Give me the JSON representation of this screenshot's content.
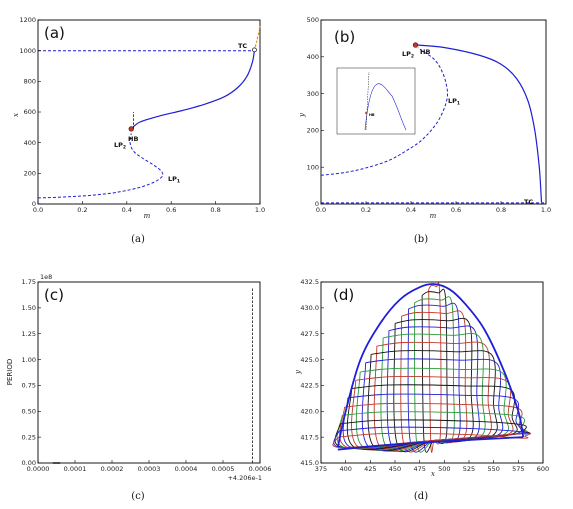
{
  "colors": {
    "blue": "#1f1fd6",
    "orange": "#e08a1e",
    "red": "#c0392b",
    "green": "#2a9a3a",
    "black": "#111111"
  },
  "chart_data": [
    {
      "panel_label": "(a)",
      "caption": "(a)",
      "type": "line",
      "xlabel": "m",
      "ylabel": "x",
      "xlim": [
        0.0,
        1.0
      ],
      "ylim": [
        0,
        1200
      ],
      "xticks": [
        "0.0",
        "0.2",
        "0.4",
        "0.6",
        "0.8",
        "1.0"
      ],
      "yticks": [
        "0",
        "200",
        "400",
        "600",
        "800",
        "1000",
        "1200"
      ],
      "annotations": [
        "TC",
        "HB",
        "LP2",
        "LP1"
      ],
      "series": [
        {
          "style": "dashed-blue",
          "x": [
            0.0,
            0.05,
            0.15,
            0.25,
            0.35,
            0.45,
            0.52,
            0.56,
            0.555,
            0.52,
            0.47,
            0.43,
            0.415,
            0.42
          ],
          "y": [
            40,
            42,
            48,
            58,
            75,
            105,
            140,
            180,
            215,
            255,
            300,
            345,
            400,
            460
          ]
        },
        {
          "style": "solid-blue",
          "x": [
            0.42,
            0.46,
            0.55,
            0.65,
            0.75,
            0.84,
            0.9,
            0.94,
            0.965,
            0.975
          ],
          "y": [
            490,
            535,
            575,
            610,
            650,
            700,
            760,
            830,
            920,
            1000
          ]
        },
        {
          "style": "dashed-blue",
          "x": [
            0.0,
            0.97
          ],
          "y": [
            1000,
            1000
          ]
        },
        {
          "style": "dashed-black",
          "x": [
            0.43,
            0.43
          ],
          "y": [
            490,
            600
          ]
        },
        {
          "style": "dashed-orange",
          "x": [
            0.975,
            0.985,
            0.995,
            1.0
          ],
          "y": [
            1000,
            1060,
            1120,
            1160
          ]
        }
      ],
      "points": [
        {
          "label": "HB",
          "x": 0.42,
          "y": 490
        },
        {
          "label": "TC",
          "x": 0.975,
          "y": 1005
        }
      ]
    },
    {
      "panel_label": "(b)",
      "caption": "(b)",
      "type": "line",
      "xlabel": "m",
      "ylabel": "y",
      "xlim": [
        0.0,
        1.0
      ],
      "ylim": [
        0,
        500
      ],
      "xticks": [
        "0.0",
        "0.2",
        "0.4",
        "0.6",
        "0.8",
        "1.0"
      ],
      "yticks": [
        "0",
        "100",
        "200",
        "300",
        "400",
        "500"
      ],
      "annotations": [
        "LP2",
        "HB",
        "LP1",
        "TC"
      ],
      "series": [
        {
          "style": "dashed-blue",
          "x": [
            0.0,
            0.1,
            0.2,
            0.3,
            0.38,
            0.45,
            0.52,
            0.56,
            0.555,
            0.53,
            0.5,
            0.46,
            0.43
          ],
          "y": [
            78,
            85,
            98,
            118,
            145,
            175,
            225,
            285,
            330,
            370,
            395,
            412,
            425
          ]
        },
        {
          "style": "solid-blue",
          "x": [
            0.43,
            0.55,
            0.7,
            0.8,
            0.87,
            0.92,
            0.95,
            0.97,
            0.98
          ],
          "y": [
            432,
            425,
            405,
            380,
            340,
            280,
            200,
            100,
            5
          ]
        },
        {
          "style": "dashed-blue",
          "x": [
            0.0,
            1.0
          ],
          "y": [
            3,
            3
          ]
        }
      ],
      "points": [
        {
          "label": "HB",
          "x": 0.42,
          "y": 432
        }
      ]
    },
    {
      "panel_label": "(c)",
      "caption": "(c)",
      "type": "line",
      "xlabel": "+4.206e-1",
      "ylabel": "PERIOD",
      "xlim": [
        0.0,
        0.0006
      ],
      "ylim": [
        0.0,
        1.75
      ],
      "y_scale_note": "1e8",
      "xticks": [
        "0.0000",
        "0.0001",
        "0.0002",
        "0.0003",
        "0.0004",
        "0.0005",
        "0.0006"
      ],
      "yticks": [
        "0.00",
        "0.25",
        "0.50",
        "0.75",
        "1.00",
        "1.25",
        "1.50",
        "1.75"
      ],
      "series": [
        {
          "style": "dashed-black",
          "x": [
            0.00058,
            0.00058
          ],
          "y": [
            0.0,
            1.7
          ]
        },
        {
          "style": "solid-black",
          "x": [
            4e-05,
            6e-05
          ],
          "y": [
            0.0,
            0.0
          ]
        }
      ]
    },
    {
      "panel_label": "(d)",
      "caption": "(d)",
      "type": "line",
      "xlabel": "x",
      "ylabel": "y",
      "xlim": [
        375,
        600
      ],
      "ylim": [
        415.0,
        432.5
      ],
      "xticks": [
        "375",
        "400",
        "425",
        "450",
        "475",
        "500",
        "525",
        "550",
        "575",
        "600"
      ],
      "yticks": [
        "415.0",
        "417.5",
        "420.0",
        "422.5",
        "425.0",
        "427.5",
        "430.0",
        "432.5"
      ],
      "outer_envelope": {
        "x": [
          392,
          400,
          415,
          435,
          455,
          475,
          490,
          505,
          520,
          540,
          560,
          575,
          580
        ],
        "y": [
          416.5,
          420.0,
          425.0,
          428.5,
          430.8,
          432.0,
          432.3,
          431.8,
          430.5,
          428.0,
          424.0,
          420.0,
          417.5
        ]
      },
      "bottom_edge": {
        "x": [
          392,
          450,
          520,
          580
        ],
        "y": [
          416.3,
          416.8,
          417.2,
          417.5
        ]
      },
      "cycle_levels": [
        431.8,
        431.2,
        430.5,
        429.9,
        429.2,
        428.5,
        427.8,
        427.1,
        426.3,
        425.5,
        424.7,
        423.8,
        423.0,
        422.2,
        421.3,
        420.4,
        419.6,
        418.8,
        418.1,
        417.5
      ],
      "cycle_colors": [
        "red",
        "black",
        "green",
        "blue",
        "red",
        "black",
        "blue",
        "green",
        "red",
        "black",
        "blue",
        "green",
        "red",
        "black",
        "blue",
        "red",
        "green",
        "black",
        "blue",
        "red"
      ]
    }
  ]
}
